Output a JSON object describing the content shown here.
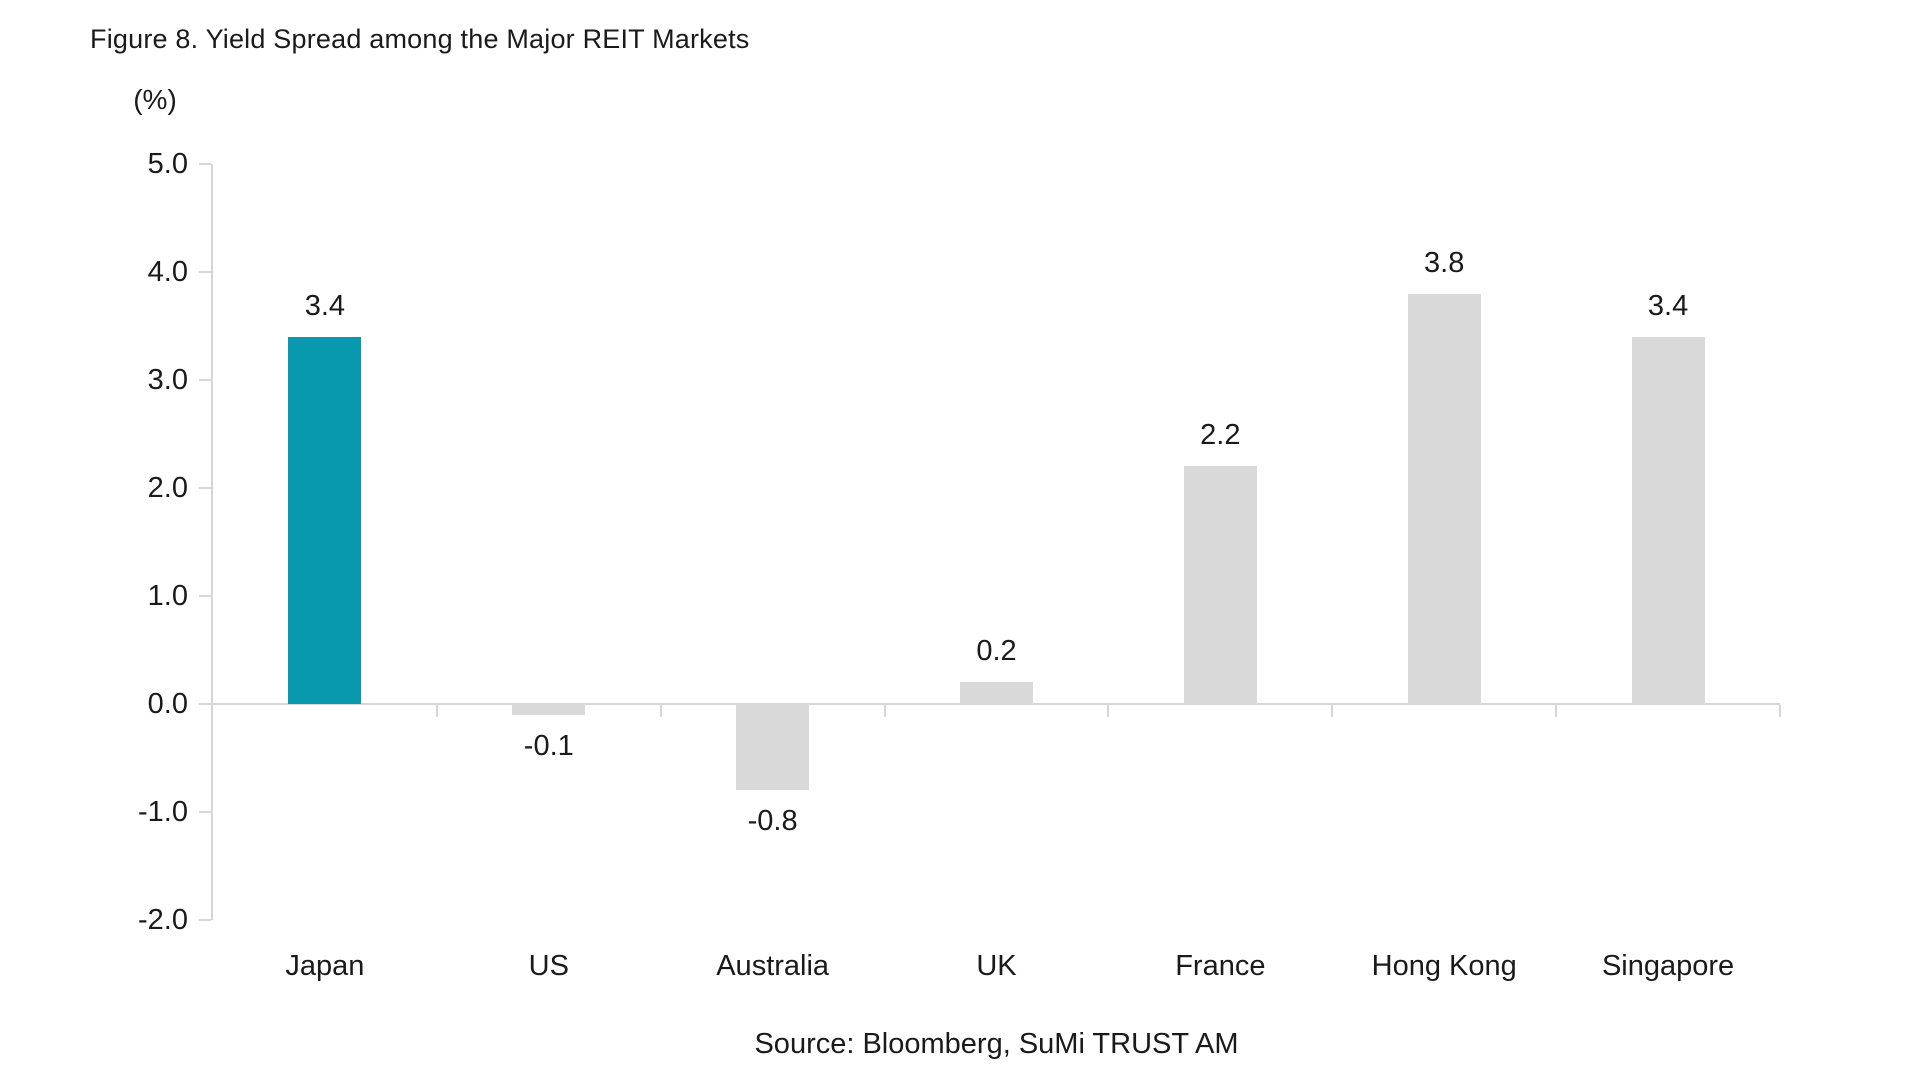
{
  "title": "Figure 8. Yield Spread among the Major REIT Markets",
  "source": "Source: Bloomberg, SuMi TRUST AM",
  "chart_data": {
    "type": "bar",
    "title": "Figure 8. Yield Spread among the Major REIT Markets",
    "unit_label": "(%)",
    "categories": [
      "Japan",
      "US",
      "Australia",
      "UK",
      "France",
      "Hong Kong",
      "Singapore"
    ],
    "values": [
      3.4,
      -0.1,
      -0.8,
      0.2,
      2.2,
      3.8,
      3.4
    ],
    "value_labels": [
      "3.4",
      "-0.1",
      "-0.8",
      "0.2",
      "2.2",
      "3.8",
      "3.4"
    ],
    "xlabel": "",
    "ylabel": "(%)",
    "ylim": [
      -2.0,
      5.0
    ],
    "yticks": [
      5.0,
      4.0,
      3.0,
      2.0,
      1.0,
      0.0,
      -1.0,
      -2.0
    ],
    "ytick_labels": [
      "5.0",
      "4.0",
      "3.0",
      "2.0",
      "1.0",
      "0.0",
      "-1.0",
      "-2.0"
    ],
    "grid": false,
    "legend": "none",
    "highlight_category": "Japan",
    "colors": {
      "highlight_bar": "#0999ae",
      "default_bar": "#d9d9d9",
      "axis": "#d6d6d6",
      "text": "#1a1a1a"
    },
    "caption": "Source: Bloomberg, SuMi TRUST AM"
  }
}
